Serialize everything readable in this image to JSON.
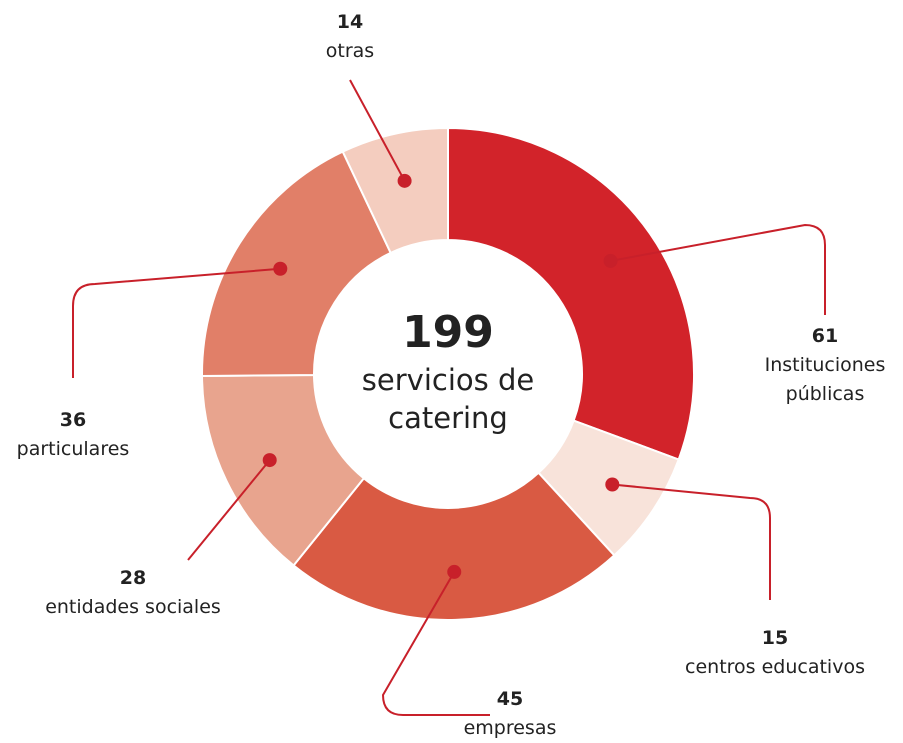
{
  "chart_data": {
    "type": "donut",
    "categories": [
      "Instituciones públicas",
      "centros educativos",
      "empresas",
      "entidades sociales",
      "particulares",
      "otras"
    ],
    "values": [
      61,
      15,
      45,
      28,
      36,
      14
    ],
    "colors": [
      "#d2232a",
      "#f8e3da",
      "#d95a43",
      "#e8a48e",
      "#e17f68",
      "#f4cdbf"
    ],
    "total": 199,
    "total_label": "servicios de catering",
    "leader_color": "#c8202a"
  }
}
